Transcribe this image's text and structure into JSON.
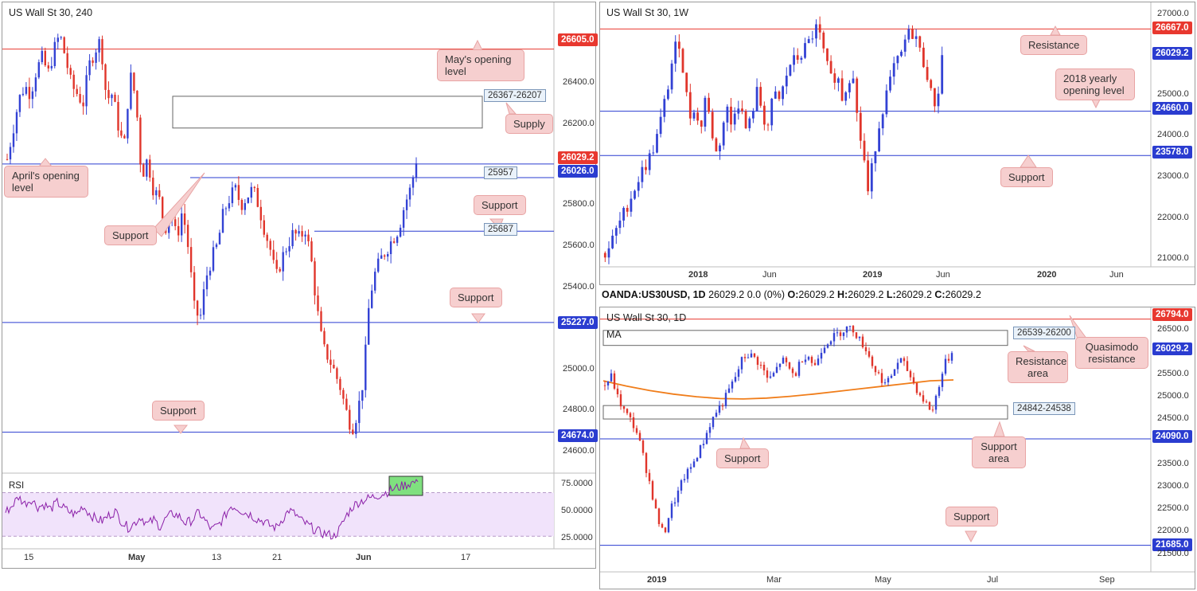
{
  "panels": {
    "p240": {
      "title": "US Wall St 30, 240"
    },
    "pW": {
      "title": "US Wall St 30, 1W"
    },
    "pD": {
      "title": "US Wall St 30, 1D",
      "ma_label": "MA"
    },
    "rsi": {
      "title": "RSI"
    }
  },
  "info_line": {
    "symbol": "OANDA:US30USD, 1D",
    "values": "26029.2 0.0 (0%)",
    "ohlc": [
      {
        "k": "O:",
        "v": "26029.2"
      },
      {
        "k": "H:",
        "v": "26029.2"
      },
      {
        "k": "L:",
        "v": "26029.2"
      },
      {
        "k": "C:",
        "v": "26029.2"
      }
    ]
  },
  "annotations": {
    "p240": {
      "mays_opening": "May's opening level",
      "supply": "Supply",
      "aprils_opening": "April's opening level",
      "support_upper": "Support",
      "support_left": "Support",
      "support_mid": "Support",
      "support_low": "Support"
    },
    "pW": {
      "resistance": "Resistance",
      "yearly_opening": "2018 yearly opening level",
      "support": "Support"
    },
    "pD": {
      "quasimodo": "Quasimodo resistance",
      "resistance_area": "Resistance area",
      "support_area": "Support area",
      "support_mid": "Support",
      "support_low": "Support"
    }
  },
  "colors": {
    "bull": "#3342d4",
    "bear": "#e0352b",
    "resistance_line": "#e8382f",
    "support_line": "#2a3cd0",
    "ma_line": "#f07d1a",
    "rsi_line": "#8b1fa8",
    "rsi_band": "#f1e3fb",
    "rsi_highlight": "#7fe07f",
    "annotation_fill": "#f6cfcf"
  },
  "chart_data": [
    {
      "id": "p240",
      "type": "candlestick",
      "title": "US Wall St 30, 240",
      "ylim": [
        24480,
        26800
      ],
      "y_ticks": [
        "26400.0",
        "26200.0",
        "25800.0",
        "25600.0",
        "25400.0",
        "25000.0",
        "24800.0",
        "24600.0"
      ],
      "x_ticks": [
        "15",
        "May",
        "13",
        "21",
        "Jun",
        "17"
      ],
      "price_tags": [
        {
          "value": 26605.0,
          "label": "26605.0",
          "color": "red"
        },
        {
          "value": 26029.2,
          "label": "26029.2",
          "color": "red"
        },
        {
          "value": 26026.0,
          "label": "26026.0",
          "color": "blue"
        },
        {
          "value": 25227.0,
          "label": "25227.0",
          "color": "blue"
        },
        {
          "value": 24674.0,
          "label": "24674.0",
          "color": "blue"
        }
      ],
      "levels": [
        {
          "value": 26605.0,
          "kind": "resistance"
        },
        {
          "value": 26026.0,
          "kind": "support"
        },
        {
          "value": 25957,
          "kind": "support"
        },
        {
          "value": 25687,
          "kind": "support"
        },
        {
          "value": 25227.0,
          "kind": "support"
        },
        {
          "value": 24674.0,
          "kind": "support"
        }
      ],
      "level_labels": [
        "25957",
        "25687"
      ],
      "zones": [
        {
          "label": "26367-26207",
          "top": 26367,
          "bottom": 26207
        }
      ],
      "price_path": [
        26050,
        26200,
        26350,
        26420,
        26380,
        26500,
        26560,
        26480,
        26600,
        26680,
        26560,
        26420,
        26380,
        26330,
        26520,
        26600,
        26650,
        26350,
        26380,
        26220,
        26100,
        26480,
        26360,
        25960,
        26050,
        25900,
        25850,
        25700,
        25780,
        25650,
        25800,
        25600,
        25300,
        25240,
        25450,
        25550,
        25620,
        25780,
        25850,
        25900,
        25820,
        25860,
        25900,
        25820,
        25700,
        25600,
        25450,
        25550,
        25620,
        25680,
        25650,
        25700,
        25550,
        25300,
        25100,
        25050,
        24980,
        24900,
        24780,
        24690,
        24780,
        24950,
        25350,
        25480,
        25550,
        25600,
        25650,
        25700,
        25820,
        25900,
        26029
      ]
    },
    {
      "id": "rsi",
      "type": "line",
      "title": "RSI",
      "ylim": [
        20,
        85
      ],
      "y_ticks": [
        "75.0000",
        "50.0000",
        "25.0000"
      ],
      "band": [
        30,
        70
      ],
      "values": [
        52,
        58,
        66,
        60,
        64,
        57,
        59,
        55,
        61,
        56,
        52,
        50,
        58,
        51,
        46,
        44,
        49,
        53,
        44,
        38,
        42,
        48,
        41,
        45,
        39,
        47,
        51,
        48,
        42,
        45,
        52,
        44,
        36,
        40,
        48,
        58,
        56,
        52,
        50,
        46,
        44,
        40,
        38,
        46,
        54,
        50,
        44,
        40,
        36,
        33,
        32,
        30,
        38,
        50,
        58,
        62,
        64,
        66,
        68,
        70,
        73,
        75,
        77,
        79,
        80
      ]
    },
    {
      "id": "pW",
      "type": "candlestick",
      "title": "US Wall St 30, 1W",
      "ylim": [
        20900,
        27200
      ],
      "y_ticks": [
        "27000.0",
        "25000.0",
        "24000.0",
        "23000.0",
        "22000.0",
        "21000.0"
      ],
      "x_ticks": [
        "2018",
        "Jun",
        "2019",
        "Jun",
        "2020",
        "Jun"
      ],
      "price_tags": [
        {
          "value": 26667.0,
          "label": "26667.0",
          "color": "red"
        },
        {
          "value": 26029.2,
          "label": "26029.2",
          "color": "blue"
        },
        {
          "value": 24660.0,
          "label": "24660.0",
          "color": "blue"
        },
        {
          "value": 23578.0,
          "label": "23578.0",
          "color": "blue"
        }
      ],
      "levels": [
        {
          "value": 26667.0,
          "kind": "resistance"
        },
        {
          "value": 24660.0,
          "kind": "support"
        },
        {
          "value": 23578.0,
          "kind": "support"
        }
      ],
      "price_path": [
        21200,
        21400,
        21700,
        22000,
        22300,
        22600,
        22900,
        23200,
        23400,
        23700,
        24100,
        24700,
        25300,
        26100,
        26400,
        25500,
        24500,
        24800,
        24100,
        25000,
        24400,
        23600,
        24000,
        24800,
        24300,
        25000,
        24600,
        24100,
        24700,
        25200,
        24500,
        24300,
        25100,
        24900,
        25300,
        25800,
        25900,
        26000,
        26200,
        26400,
        26700,
        26400,
        25800,
        25400,
        25600,
        25000,
        25300,
        25800,
        24300,
        23700,
        22600,
        23600,
        24300,
        24900,
        25300,
        25800,
        25900,
        26400,
        26600,
        26500,
        26000,
        25700,
        25000,
        24800,
        26029
      ]
    },
    {
      "id": "pD",
      "type": "candlestick",
      "title": "US Wall St 30, 1D",
      "ylim": [
        21300,
        26950
      ],
      "y_ticks": [
        "26500.0",
        "25500.0",
        "25000.0",
        "24500.0",
        "23500.0",
        "23000.0",
        "22500.0",
        "22000.0",
        "21500.0"
      ],
      "x_ticks": [
        "2019",
        "Mar",
        "May",
        "Jul",
        "Sep"
      ],
      "price_tags": [
        {
          "value": 26794.0,
          "label": "26794.0",
          "color": "red"
        },
        {
          "value": 26029.2,
          "label": "26029.2",
          "color": "blue"
        },
        {
          "value": 24090.0,
          "label": "24090.0",
          "color": "blue"
        },
        {
          "value": 21685.0,
          "label": "21685.0",
          "color": "blue"
        }
      ],
      "levels": [
        {
          "value": 26794.0,
          "kind": "resistance"
        },
        {
          "value": 24090.0,
          "kind": "support"
        },
        {
          "value": 21685.0,
          "kind": "support"
        }
      ],
      "zones": [
        {
          "label": "26539-26200",
          "top": 26539,
          "bottom": 26200
        },
        {
          "label": "24842-24538",
          "top": 24842,
          "bottom": 24538
        }
      ],
      "moving_average": {
        "label": "MA",
        "values": [
          25400,
          25280,
          25180,
          25100,
          25040,
          25000,
          24990,
          25010,
          25050,
          25100,
          25160,
          25220,
          25280,
          25340,
          25400,
          25420
        ]
      },
      "price_path": [
        25300,
        25500,
        25000,
        24700,
        24500,
        24200,
        23600,
        23000,
        22300,
        21900,
        22500,
        22800,
        23200,
        23400,
        23700,
        24000,
        24400,
        24700,
        24900,
        25200,
        25500,
        25900,
        26000,
        25900,
        25700,
        25400,
        25600,
        25900,
        25700,
        25500,
        25900,
        26000,
        25700,
        26100,
        26300,
        26400,
        26500,
        26600,
        26550,
        26300,
        26100,
        25700,
        25500,
        25300,
        25600,
        25900,
        25700,
        25400,
        25100,
        24900,
        24700,
        25300,
        25800,
        26029
      ]
    }
  ]
}
